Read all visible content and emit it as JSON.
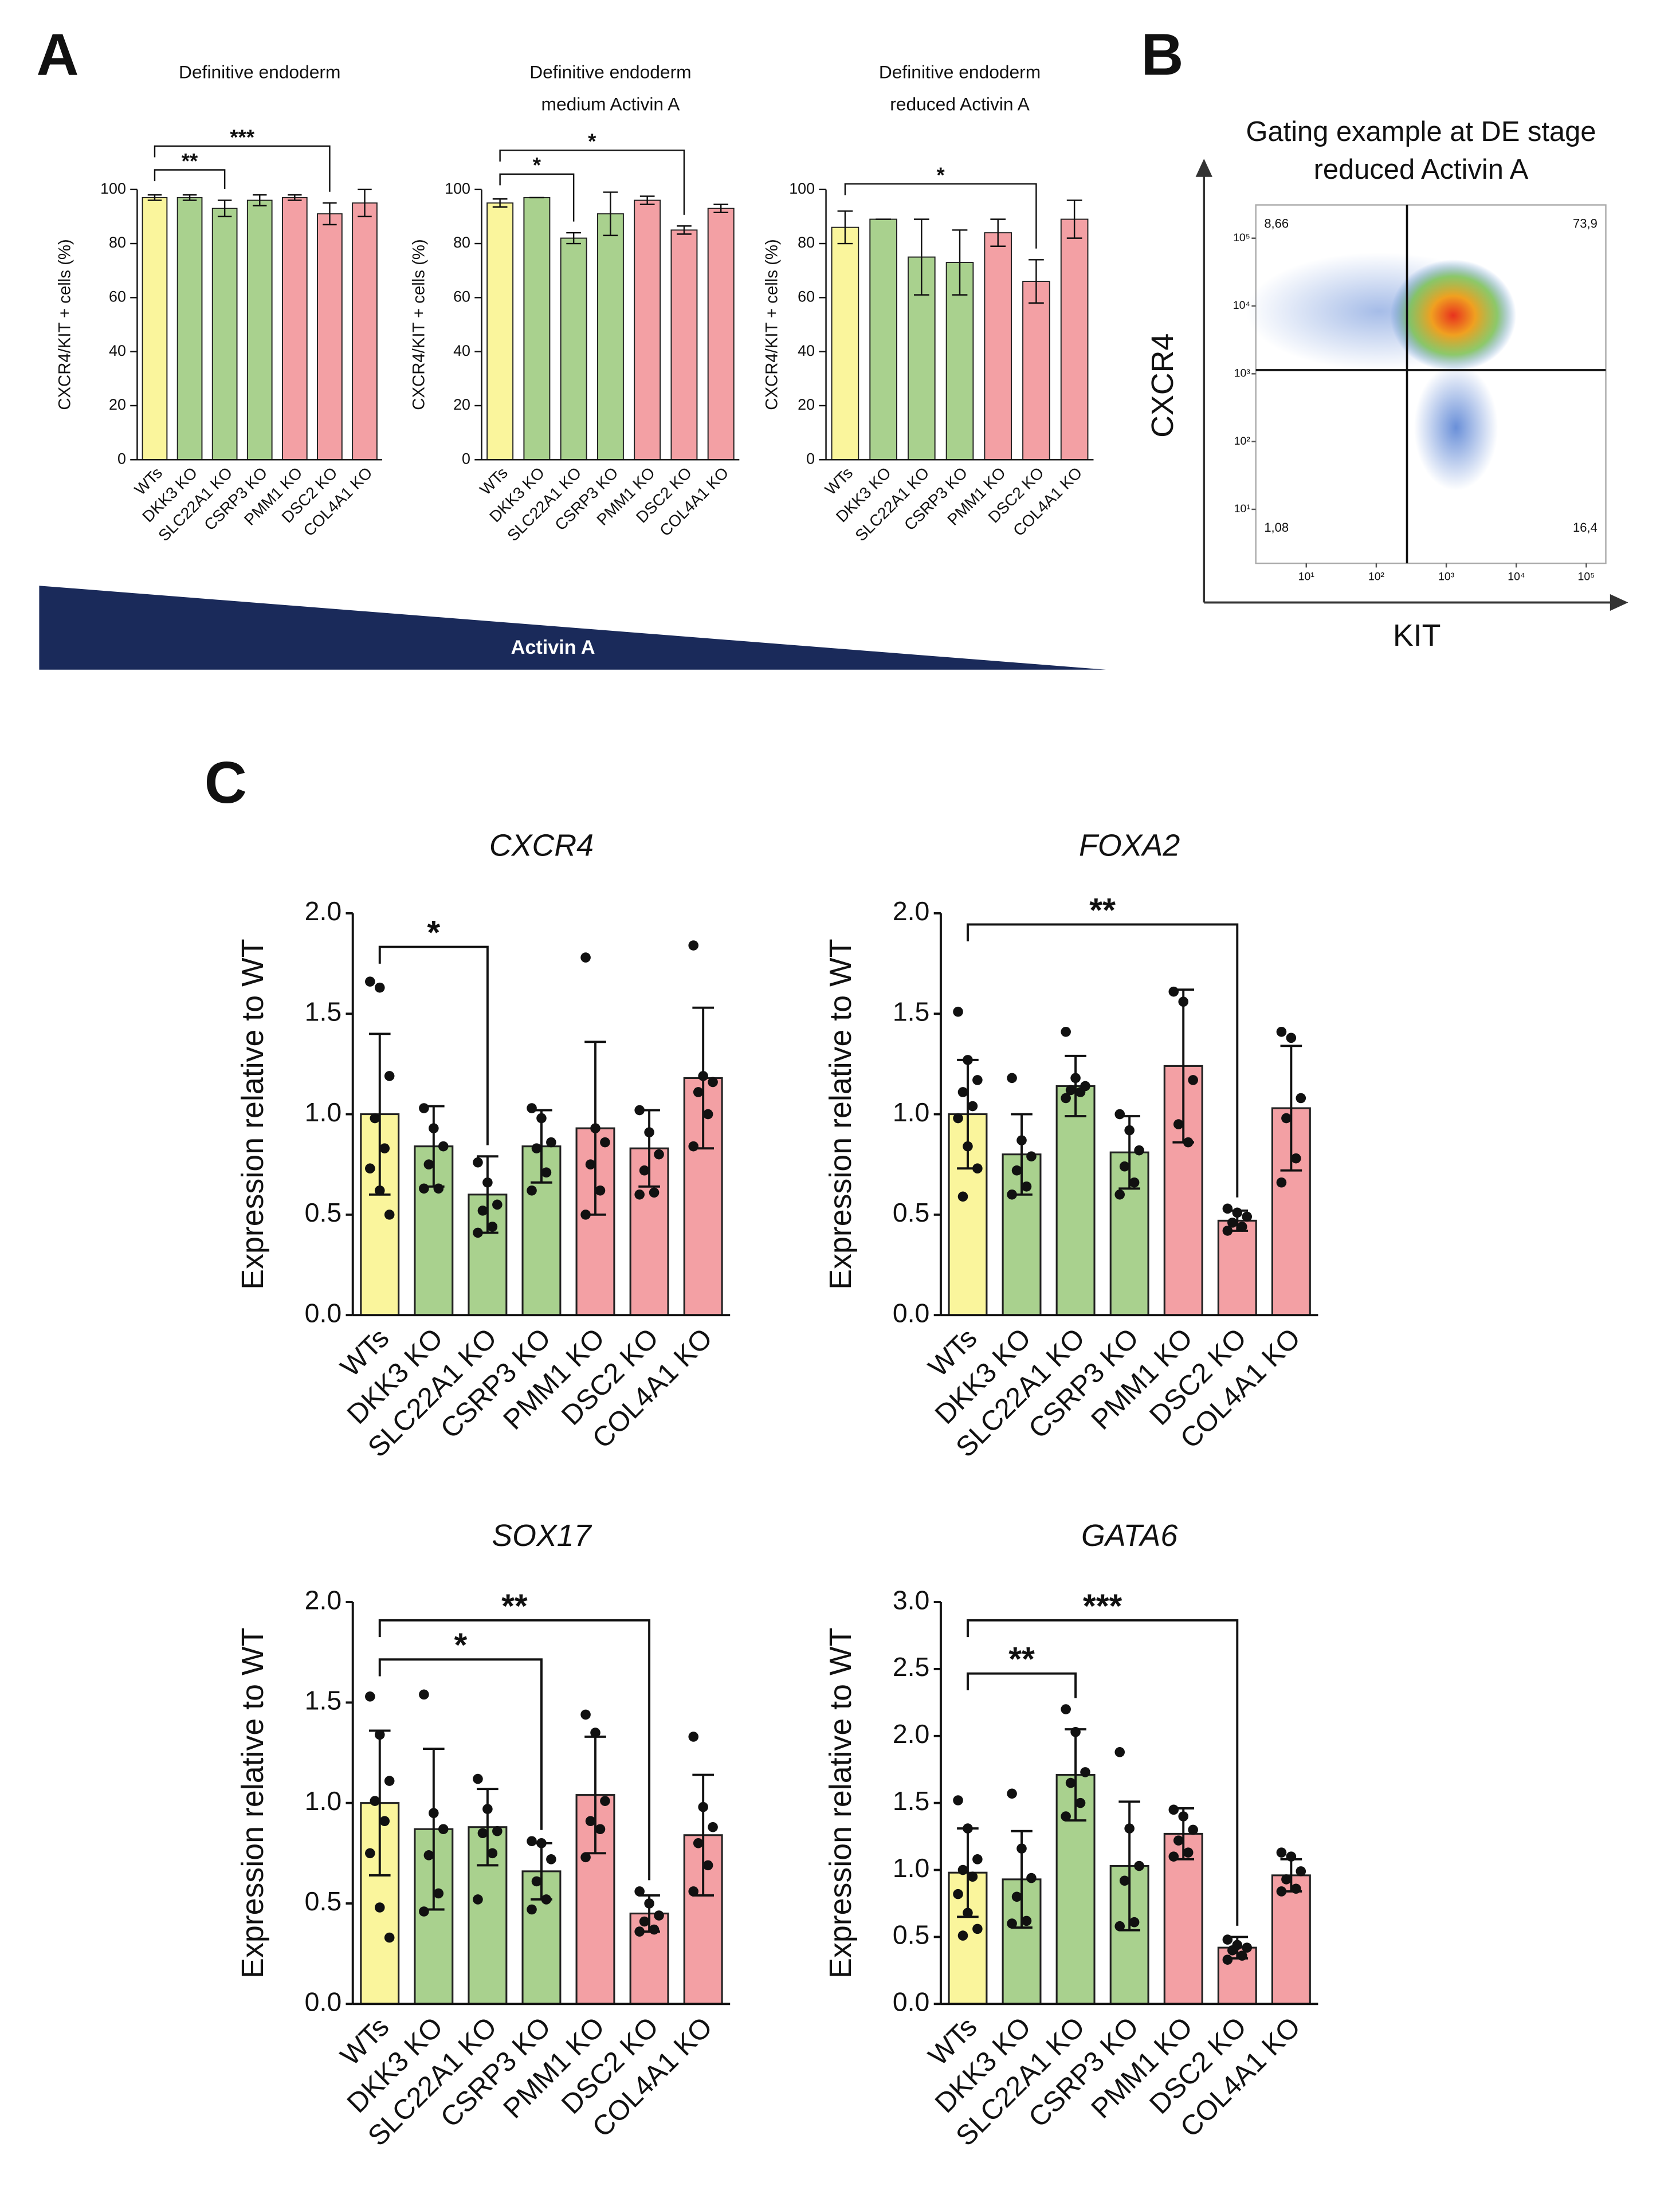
{
  "panel_labels": [
    "A",
    "B",
    "C"
  ],
  "gradient_label": "Activin A",
  "chart_data": [
    {
      "type": "bar",
      "title": [
        "Definitive endoderm"
      ],
      "ylabel": "CXCR4/KIT + cells (%)",
      "categories": [
        "WTs",
        "DKK3 KO",
        "SLC22A1 KO",
        "CSRP3 KO",
        "PMM1 KO",
        "DSC2 KO",
        "COL4A1 KO"
      ],
      "colors": [
        "#faf59c",
        "#a9d18e",
        "#a9d18e",
        "#a9d18e",
        "#f3a0a4",
        "#f3a0a4",
        "#f3a0a4"
      ],
      "values": [
        97,
        97,
        93,
        96,
        97,
        91,
        95
      ],
      "errors": [
        1,
        1,
        3,
        2,
        1,
        4,
        5
      ],
      "ylim": [
        0,
        100
      ],
      "yticks": [
        0,
        20,
        40,
        60,
        80,
        100
      ],
      "brackets": [
        {
          "from": 0,
          "to": 2,
          "label": "**"
        },
        {
          "from": 0,
          "to": 5,
          "label": "***"
        }
      ]
    },
    {
      "type": "bar",
      "title": [
        "Definitive endoderm",
        "medium Activin A"
      ],
      "ylabel": "CXCR4/KIT + cells (%)",
      "categories": [
        "WTs",
        "DKK3 KO",
        "SLC22A1 KO",
        "CSRP3 KO",
        "PMM1 KO",
        "DSC2 KO",
        "COL4A1 KO"
      ],
      "colors": [
        "#faf59c",
        "#a9d18e",
        "#a9d18e",
        "#a9d18e",
        "#f3a0a4",
        "#f3a0a4",
        "#f3a0a4"
      ],
      "values": [
        95,
        97,
        82,
        91,
        96,
        85,
        93
      ],
      "errors": [
        1.5,
        0,
        2,
        8,
        1.5,
        1.5,
        1.5
      ],
      "ylim": [
        0,
        100
      ],
      "yticks": [
        0,
        20,
        40,
        60,
        80,
        100
      ],
      "brackets": [
        {
          "from": 0,
          "to": 2,
          "label": "*"
        },
        {
          "from": 0,
          "to": 5,
          "label": "*"
        }
      ]
    },
    {
      "type": "bar",
      "title": [
        "Definitive endoderm",
        "reduced Activin A"
      ],
      "ylabel": "CXCR4/KIT + cells (%)",
      "categories": [
        "WTs",
        "DKK3 KO",
        "SLC22A1 KO",
        "CSRP3 KO",
        "PMM1 KO",
        "DSC2 KO",
        "COL4A1 KO"
      ],
      "colors": [
        "#faf59c",
        "#a9d18e",
        "#a9d18e",
        "#a9d18e",
        "#f3a0a4",
        "#f3a0a4",
        "#f3a0a4"
      ],
      "values": [
        86,
        89,
        75,
        73,
        84,
        66,
        89
      ],
      "errors": [
        6,
        0,
        14,
        12,
        5,
        8,
        7
      ],
      "ylim": [
        0,
        100
      ],
      "yticks": [
        0,
        20,
        40,
        60,
        80,
        100
      ],
      "brackets": [
        {
          "from": 0,
          "to": 5,
          "label": "*"
        }
      ]
    },
    {
      "type": "flow",
      "title": [
        "Gating example at DE stage",
        "reduced Activin A"
      ],
      "xlabel": "KIT",
      "ylabel": "CXCR4",
      "log": true,
      "xlim": [
        1.9,
        190000
      ],
      "ylim": [
        1.6,
        310000
      ],
      "xticks": [
        {
          "value": 10,
          "label": "10¹"
        },
        {
          "value": 100,
          "label": "10²"
        },
        {
          "value": 1000,
          "label": "10³"
        },
        {
          "value": 10000,
          "label": "10⁴"
        },
        {
          "value": 100000,
          "label": "10⁵"
        }
      ],
      "yticks": [
        {
          "value": 10,
          "label": "10¹"
        },
        {
          "value": 100,
          "label": "10²"
        },
        {
          "value": 1000,
          "label": "10³"
        },
        {
          "value": 10000,
          "label": "10⁴"
        },
        {
          "value": 100000,
          "label": "10⁵"
        }
      ],
      "quadrant_labels": [
        "8,66",
        "73,9",
        "1,08",
        "16,4"
      ]
    },
    {
      "type": "bar",
      "title": [
        "CXCR4"
      ],
      "ylabel": "Expression relative to WT",
      "categories": [
        "WTs",
        "DKK3 KO",
        "SLC22A1 KO",
        "CSRP3 KO",
        "PMM1 KO",
        "DSC2 KO",
        "COL4A1 KO"
      ],
      "colors": [
        "#faf59c",
        "#a9d18e",
        "#a9d18e",
        "#a9d18e",
        "#f3a0a4",
        "#f3a0a4",
        "#f3a0a4"
      ],
      "values": [
        1.0,
        0.84,
        0.6,
        0.84,
        0.93,
        0.83,
        1.18
      ],
      "errors": [
        0.4,
        0.2,
        0.19,
        0.18,
        0.43,
        0.19,
        0.35
      ],
      "points": [
        [
          1.66,
          1.63,
          1.19,
          0.98,
          0.83,
          0.73,
          0.62,
          0.5
        ],
        [
          1.03,
          0.93,
          0.84,
          0.75,
          0.63,
          0.63
        ],
        [
          0.76,
          0.66,
          0.55,
          0.52,
          0.44,
          0.41
        ],
        [
          1.03,
          0.98,
          0.86,
          0.83,
          0.71,
          0.62
        ],
        [
          1.78,
          0.93,
          0.86,
          0.75,
          0.62,
          0.5
        ],
        [
          1.02,
          0.91,
          0.8,
          0.72,
          0.61,
          0.6
        ],
        [
          1.84,
          1.19,
          1.16,
          1.11,
          1.0,
          0.84
        ]
      ],
      "ylim": [
        0,
        2
      ],
      "yticks": [
        {
          "value": 0,
          "label": "0.0"
        },
        {
          "value": 0.5,
          "label": "0.5"
        },
        {
          "value": 1,
          "label": "1.0"
        },
        {
          "value": 1.5,
          "label": "1.5"
        },
        {
          "value": 2,
          "label": "2.0"
        }
      ],
      "brackets": [
        {
          "from": 0,
          "to": 2,
          "label": "*"
        }
      ]
    },
    {
      "type": "bar",
      "title": [
        "FOXA2"
      ],
      "ylabel": "Expression relative to WT",
      "categories": [
        "WTs",
        "DKK3 KO",
        "SLC22A1 KO",
        "CSRP3 KO",
        "PMM1 KO",
        "DSC2 KO",
        "COL4A1 KO"
      ],
      "colors": [
        "#faf59c",
        "#a9d18e",
        "#a9d18e",
        "#a9d18e",
        "#f3a0a4",
        "#f3a0a4",
        "#f3a0a4"
      ],
      "values": [
        1.0,
        0.8,
        1.14,
        0.81,
        1.24,
        0.47,
        1.03
      ],
      "errors": [
        0.27,
        0.2,
        0.15,
        0.18,
        0.38,
        0.05,
        0.31
      ],
      "points": [
        [
          1.51,
          1.27,
          1.17,
          1.11,
          1.04,
          0.98,
          0.84,
          0.73,
          0.59
        ],
        [
          1.18,
          0.87,
          0.79,
          0.72,
          0.64,
          0.6
        ],
        [
          1.41,
          1.18,
          1.14,
          1.12,
          1.11,
          1.08
        ],
        [
          1.0,
          0.92,
          0.82,
          0.74,
          0.66,
          0.6
        ],
        [
          1.61,
          1.56,
          1.17,
          0.95,
          0.86
        ],
        [
          0.53,
          0.51,
          0.49,
          0.46,
          0.44,
          0.42
        ],
        [
          1.41,
          1.38,
          1.08,
          0.98,
          0.78,
          0.66
        ]
      ],
      "ylim": [
        0,
        2
      ],
      "yticks": [
        {
          "value": 0,
          "label": "0.0"
        },
        {
          "value": 0.5,
          "label": "0.5"
        },
        {
          "value": 1,
          "label": "1.0"
        },
        {
          "value": 1.5,
          "label": "1.5"
        },
        {
          "value": 2,
          "label": "2.0"
        }
      ],
      "brackets": [
        {
          "from": 0,
          "to": 5,
          "label": "**"
        }
      ]
    },
    {
      "type": "bar",
      "title": [
        "SOX17"
      ],
      "ylabel": "Expression relative to WT",
      "categories": [
        "WTs",
        "DKK3 KO",
        "SLC22A1 KO",
        "CSRP3 KO",
        "PMM1 KO",
        "DSC2 KO",
        "COL4A1 KO"
      ],
      "colors": [
        "#faf59c",
        "#a9d18e",
        "#a9d18e",
        "#a9d18e",
        "#f3a0a4",
        "#f3a0a4",
        "#f3a0a4"
      ],
      "values": [
        1.0,
        0.87,
        0.88,
        0.66,
        1.04,
        0.45,
        0.84
      ],
      "errors": [
        0.36,
        0.4,
        0.19,
        0.14,
        0.29,
        0.09,
        0.3
      ],
      "points": [
        [
          1.53,
          1.34,
          1.11,
          1.01,
          0.91,
          0.75,
          0.48,
          0.33
        ],
        [
          1.54,
          0.95,
          0.87,
          0.74,
          0.55,
          0.46
        ],
        [
          1.12,
          0.97,
          0.86,
          0.85,
          0.75,
          0.52
        ],
        [
          0.81,
          0.8,
          0.72,
          0.61,
          0.52,
          0.47
        ],
        [
          1.44,
          1.35,
          1.01,
          0.91,
          0.87,
          0.73
        ],
        [
          0.56,
          0.5,
          0.44,
          0.41,
          0.37,
          0.36
        ],
        [
          1.33,
          0.98,
          0.88,
          0.8,
          0.69,
          0.56
        ]
      ],
      "ylim": [
        0,
        2
      ],
      "yticks": [
        {
          "value": 0,
          "label": "0.0"
        },
        {
          "value": 0.5,
          "label": "0.5"
        },
        {
          "value": 1,
          "label": "1.0"
        },
        {
          "value": 1.5,
          "label": "1.5"
        },
        {
          "value": 2,
          "label": "2.0"
        }
      ],
      "brackets": [
        {
          "from": 0,
          "to": 3,
          "label": "*"
        },
        {
          "from": 0,
          "to": 5,
          "label": "**"
        }
      ]
    },
    {
      "type": "bar",
      "title": [
        "GATA6"
      ],
      "ylabel": "Expression relative to WT",
      "categories": [
        "WTs",
        "DKK3 KO",
        "SLC22A1 KO",
        "CSRP3 KO",
        "PMM1 KO",
        "DSC2 KO",
        "COL4A1 KO"
      ],
      "colors": [
        "#faf59c",
        "#a9d18e",
        "#a9d18e",
        "#a9d18e",
        "#f3a0a4",
        "#f3a0a4",
        "#f3a0a4"
      ],
      "values": [
        0.98,
        0.93,
        1.71,
        1.03,
        1.27,
        0.42,
        0.96
      ],
      "errors": [
        0.33,
        0.36,
        0.34,
        0.48,
        0.19,
        0.08,
        0.12
      ],
      "points": [
        [
          1.52,
          1.31,
          1.08,
          1.0,
          0.95,
          0.82,
          0.68,
          0.56,
          0.51
        ],
        [
          1.57,
          1.16,
          0.94,
          0.8,
          0.62,
          0.6
        ],
        [
          2.2,
          2.03,
          1.73,
          1.65,
          1.5,
          1.4
        ],
        [
          1.88,
          1.31,
          1.03,
          0.92,
          0.61,
          0.58
        ],
        [
          1.45,
          1.4,
          1.3,
          1.22,
          1.13,
          1.1
        ],
        [
          0.48,
          0.44,
          0.42,
          0.4,
          0.36,
          0.33
        ],
        [
          1.13,
          1.1,
          0.99,
          0.93,
          0.86,
          0.84
        ]
      ],
      "ylim": [
        0,
        3
      ],
      "yticks": [
        {
          "value": 0,
          "label": "0.0"
        },
        {
          "value": 0.5,
          "label": "0.5"
        },
        {
          "value": 1,
          "label": "1.0"
        },
        {
          "value": 1.5,
          "label": "1.5"
        },
        {
          "value": 2,
          "label": "2.0"
        },
        {
          "value": 2.5,
          "label": "2.5"
        },
        {
          "value": 3,
          "label": "3.0"
        }
      ],
      "brackets": [
        {
          "from": 0,
          "to": 2,
          "label": "**"
        },
        {
          "from": 0,
          "to": 5,
          "label": "***"
        }
      ]
    }
  ]
}
